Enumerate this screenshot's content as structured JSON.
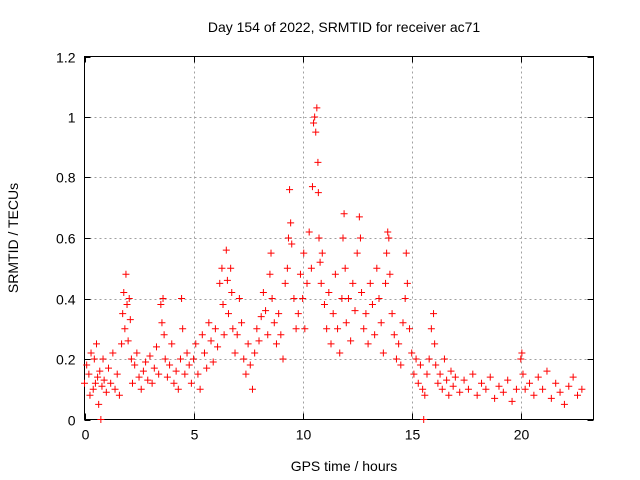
{
  "chart_data": {
    "type": "scatter",
    "title": "Day 154 of 2022, SRMTID for receiver ac71",
    "xlabel": "GPS time / hours",
    "ylabel": "SRMTID / TECUs",
    "xlim": [
      0,
      23.333
    ],
    "ylim": [
      0,
      1.2
    ],
    "x_ticks": [
      0,
      5,
      10,
      15,
      20
    ],
    "x_tick_labels": [
      "0",
      "5",
      "10",
      "15",
      "20"
    ],
    "y_ticks": [
      0,
      0.2,
      0.4,
      0.6,
      0.8,
      1,
      1.2
    ],
    "y_tick_labels": [
      "0",
      "0.2",
      "0.4",
      "0.6",
      "0.8",
      "1",
      "1.2"
    ],
    "grid": true,
    "marker": "+",
    "marker_color": "#ff0000",
    "series": [
      {
        "name": "SRMTID",
        "points": [
          [
            0.0,
            0.12
          ],
          [
            0.1,
            0.18
          ],
          [
            0.2,
            0.15
          ],
          [
            0.25,
            0.08
          ],
          [
            0.3,
            0.22
          ],
          [
            0.4,
            0.1
          ],
          [
            0.45,
            0.2
          ],
          [
            0.5,
            0.12
          ],
          [
            0.55,
            0.25
          ],
          [
            0.6,
            0.14
          ],
          [
            0.65,
            0.05
          ],
          [
            0.7,
            0.16
          ],
          [
            0.75,
            0.0
          ],
          [
            0.8,
            0.11
          ],
          [
            0.85,
            0.2
          ],
          [
            0.9,
            0.13
          ],
          [
            1.0,
            0.09
          ],
          [
            1.1,
            0.17
          ],
          [
            1.2,
            0.12
          ],
          [
            1.3,
            0.22
          ],
          [
            1.4,
            0.1
          ],
          [
            1.5,
            0.15
          ],
          [
            1.6,
            0.08
          ],
          [
            1.7,
            0.25
          ],
          [
            1.75,
            0.35
          ],
          [
            1.8,
            0.42
          ],
          [
            1.85,
            0.3
          ],
          [
            1.9,
            0.48
          ],
          [
            1.95,
            0.38
          ],
          [
            2.0,
            0.26
          ],
          [
            2.05,
            0.4
          ],
          [
            2.1,
            0.33
          ],
          [
            2.15,
            0.2
          ],
          [
            2.2,
            0.12
          ],
          [
            2.3,
            0.18
          ],
          [
            2.4,
            0.22
          ],
          [
            2.5,
            0.14
          ],
          [
            2.6,
            0.1
          ],
          [
            2.7,
            0.16
          ],
          [
            2.8,
            0.19
          ],
          [
            2.9,
            0.13
          ],
          [
            3.0,
            0.21
          ],
          [
            3.1,
            0.12
          ],
          [
            3.2,
            0.17
          ],
          [
            3.3,
            0.24
          ],
          [
            3.4,
            0.15
          ],
          [
            3.5,
            0.38
          ],
          [
            3.55,
            0.32
          ],
          [
            3.6,
            0.4
          ],
          [
            3.65,
            0.28
          ],
          [
            3.7,
            0.2
          ],
          [
            3.8,
            0.14
          ],
          [
            3.9,
            0.18
          ],
          [
            4.0,
            0.25
          ],
          [
            4.1,
            0.12
          ],
          [
            4.2,
            0.16
          ],
          [
            4.3,
            0.1
          ],
          [
            4.4,
            0.2
          ],
          [
            4.45,
            0.4
          ],
          [
            4.5,
            0.3
          ],
          [
            4.6,
            0.15
          ],
          [
            4.7,
            0.22
          ],
          [
            4.8,
            0.18
          ],
          [
            4.9,
            0.12
          ],
          [
            5.0,
            0.2
          ],
          [
            5.1,
            0.25
          ],
          [
            5.2,
            0.15
          ],
          [
            5.3,
            0.1
          ],
          [
            5.4,
            0.28
          ],
          [
            5.5,
            0.22
          ],
          [
            5.6,
            0.17
          ],
          [
            5.7,
            0.32
          ],
          [
            5.8,
            0.26
          ],
          [
            5.9,
            0.19
          ],
          [
            6.0,
            0.3
          ],
          [
            6.1,
            0.24
          ],
          [
            6.2,
            0.45
          ],
          [
            6.3,
            0.5
          ],
          [
            6.35,
            0.38
          ],
          [
            6.4,
            0.28
          ],
          [
            6.5,
            0.56
          ],
          [
            6.55,
            0.46
          ],
          [
            6.6,
            0.35
          ],
          [
            6.7,
            0.5
          ],
          [
            6.75,
            0.42
          ],
          [
            6.8,
            0.3
          ],
          [
            6.9,
            0.22
          ],
          [
            7.0,
            0.28
          ],
          [
            7.1,
            0.4
          ],
          [
            7.2,
            0.32
          ],
          [
            7.3,
            0.2
          ],
          [
            7.4,
            0.15
          ],
          [
            7.5,
            0.25
          ],
          [
            7.6,
            0.18
          ],
          [
            7.7,
            0.1
          ],
          [
            7.8,
            0.22
          ],
          [
            7.9,
            0.3
          ],
          [
            8.0,
            0.26
          ],
          [
            8.1,
            0.34
          ],
          [
            8.2,
            0.42
          ],
          [
            8.3,
            0.36
          ],
          [
            8.4,
            0.28
          ],
          [
            8.5,
            0.48
          ],
          [
            8.55,
            0.55
          ],
          [
            8.6,
            0.4
          ],
          [
            8.7,
            0.32
          ],
          [
            8.8,
            0.25
          ],
          [
            8.9,
            0.35
          ],
          [
            9.0,
            0.28
          ],
          [
            9.1,
            0.2
          ],
          [
            9.2,
            0.45
          ],
          [
            9.3,
            0.5
          ],
          [
            9.35,
            0.6
          ],
          [
            9.4,
            0.76
          ],
          [
            9.45,
            0.65
          ],
          [
            9.5,
            0.58
          ],
          [
            9.6,
            0.4
          ],
          [
            9.7,
            0.3
          ],
          [
            9.8,
            0.35
          ],
          [
            9.9,
            0.48
          ],
          [
            10.0,
            0.4
          ],
          [
            10.05,
            0.55
          ],
          [
            10.1,
            0.3
          ],
          [
            10.2,
            0.45
          ],
          [
            10.3,
            0.62
          ],
          [
            10.4,
            0.5
          ],
          [
            10.45,
            0.77
          ],
          [
            10.5,
            0.98
          ],
          [
            10.55,
            1.0
          ],
          [
            10.6,
            0.95
          ],
          [
            10.65,
            1.03
          ],
          [
            10.7,
            0.85
          ],
          [
            10.72,
            0.75
          ],
          [
            10.75,
            0.6
          ],
          [
            10.8,
            0.52
          ],
          [
            10.85,
            0.45
          ],
          [
            10.9,
            0.55
          ],
          [
            11.0,
            0.38
          ],
          [
            11.1,
            0.3
          ],
          [
            11.2,
            0.42
          ],
          [
            11.3,
            0.25
          ],
          [
            11.4,
            0.35
          ],
          [
            11.5,
            0.48
          ],
          [
            11.6,
            0.3
          ],
          [
            11.7,
            0.22
          ],
          [
            11.8,
            0.4
          ],
          [
            11.85,
            0.6
          ],
          [
            11.9,
            0.68
          ],
          [
            11.95,
            0.5
          ],
          [
            12.0,
            0.32
          ],
          [
            12.1,
            0.4
          ],
          [
            12.2,
            0.26
          ],
          [
            12.3,
            0.45
          ],
          [
            12.4,
            0.36
          ],
          [
            12.5,
            0.55
          ],
          [
            12.6,
            0.67
          ],
          [
            12.65,
            0.6
          ],
          [
            12.7,
            0.42
          ],
          [
            12.8,
            0.3
          ],
          [
            12.9,
            0.35
          ],
          [
            13.0,
            0.25
          ],
          [
            13.1,
            0.45
          ],
          [
            13.2,
            0.38
          ],
          [
            13.3,
            0.28
          ],
          [
            13.4,
            0.5
          ],
          [
            13.5,
            0.4
          ],
          [
            13.6,
            0.32
          ],
          [
            13.7,
            0.22
          ],
          [
            13.8,
            0.45
          ],
          [
            13.85,
            0.55
          ],
          [
            13.9,
            0.62
          ],
          [
            13.95,
            0.6
          ],
          [
            14.0,
            0.48
          ],
          [
            14.1,
            0.35
          ],
          [
            14.2,
            0.28
          ],
          [
            14.3,
            0.2
          ],
          [
            14.4,
            0.25
          ],
          [
            14.5,
            0.18
          ],
          [
            14.6,
            0.32
          ],
          [
            14.7,
            0.4
          ],
          [
            14.75,
            0.55
          ],
          [
            14.8,
            0.45
          ],
          [
            14.9,
            0.3
          ],
          [
            15.0,
            0.22
          ],
          [
            15.1,
            0.15
          ],
          [
            15.2,
            0.2
          ],
          [
            15.3,
            0.12
          ],
          [
            15.4,
            0.18
          ],
          [
            15.5,
            0.1
          ],
          [
            15.55,
            0.0
          ],
          [
            15.6,
            0.08
          ],
          [
            15.7,
            0.15
          ],
          [
            15.8,
            0.2
          ],
          [
            15.9,
            0.3
          ],
          [
            16.0,
            0.35
          ],
          [
            16.05,
            0.25
          ],
          [
            16.1,
            0.18
          ],
          [
            16.2,
            0.12
          ],
          [
            16.3,
            0.15
          ],
          [
            16.4,
            0.1
          ],
          [
            16.5,
            0.2
          ],
          [
            16.6,
            0.13
          ],
          [
            16.7,
            0.08
          ],
          [
            16.8,
            0.16
          ],
          [
            16.9,
            0.11
          ],
          [
            17.0,
            0.14
          ],
          [
            17.2,
            0.09
          ],
          [
            17.4,
            0.13
          ],
          [
            17.6,
            0.1
          ],
          [
            17.8,
            0.15
          ],
          [
            18.0,
            0.08
          ],
          [
            18.2,
            0.12
          ],
          [
            18.4,
            0.1
          ],
          [
            18.6,
            0.14
          ],
          [
            18.8,
            0.07
          ],
          [
            19.0,
            0.11
          ],
          [
            19.2,
            0.09
          ],
          [
            19.4,
            0.13
          ],
          [
            19.6,
            0.06
          ],
          [
            19.8,
            0.1
          ],
          [
            20.0,
            0.2
          ],
          [
            20.05,
            0.22
          ],
          [
            20.1,
            0.15
          ],
          [
            20.2,
            0.1
          ],
          [
            20.4,
            0.12
          ],
          [
            20.6,
            0.08
          ],
          [
            20.8,
            0.14
          ],
          [
            21.0,
            0.1
          ],
          [
            21.2,
            0.16
          ],
          [
            21.4,
            0.07
          ],
          [
            21.6,
            0.12
          ],
          [
            21.8,
            0.09
          ],
          [
            22.0,
            0.05
          ],
          [
            22.2,
            0.11
          ],
          [
            22.4,
            0.14
          ],
          [
            22.6,
            0.08
          ],
          [
            22.8,
            0.1
          ]
        ]
      }
    ]
  }
}
